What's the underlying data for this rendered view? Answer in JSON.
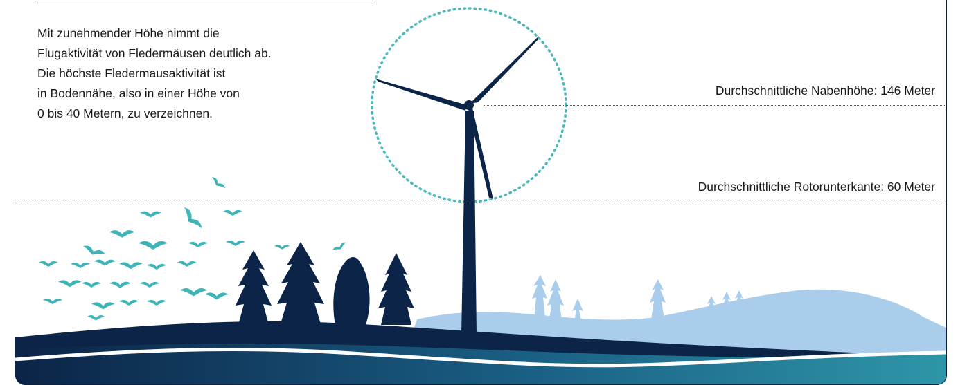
{
  "description": {
    "lines": [
      "Mit zunehmender Höhe nimmt die",
      "Flugaktivität von Fledermäusen deutlich ab.",
      "Die höchste Fledermausaktivität ist",
      "in Bodennähe, also in einer Höhe von",
      "0 bis 40 Metern, zu verzeichnen."
    ]
  },
  "markers": {
    "hub_height": "Durchschnittliche Nabenhöhe: 146 Meter",
    "rotor_bottom": "Durchschnittliche Rotorunterkante: 60 Meter"
  },
  "colors": {
    "turbine": "#0b2447",
    "bats": "#3fb3b5",
    "rotor_circle": "#4bb8b9",
    "trees_dark": "#0b2447",
    "trees_light": "#a9cdea",
    "ground_dark": "#0b2447",
    "ground_mid": "#1d6a8e",
    "ground_teal": "#2e9aa9"
  },
  "icons": {
    "turbine": "wind-turbine-icon",
    "bat": "bat-icon",
    "tree": "tree-icon"
  }
}
